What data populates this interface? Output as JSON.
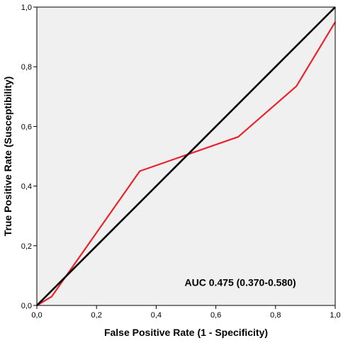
{
  "chart_data": {
    "type": "line",
    "xlabel": "False  Positive Rate (1 - Specificity)",
    "ylabel": "True Positive Rate (Susceptibility)",
    "xlim": [
      0,
      1
    ],
    "ylim": [
      0,
      1
    ],
    "x_ticks": [
      0,
      0.2,
      0.4,
      0.6,
      0.8,
      1.0
    ],
    "y_ticks": [
      0,
      0.2,
      0.4,
      0.6,
      0.8,
      1.0
    ],
    "x_tick_labels": [
      "0,0",
      "0,2",
      "0,4",
      "0,6",
      "0,8",
      "1,0"
    ],
    "y_tick_labels": [
      "0,0",
      "0,2",
      "0,4",
      "0,6",
      "0,8",
      "1,0"
    ],
    "grid": false,
    "background_color": "#f0f0f0",
    "series": [
      {
        "color": "#e8232a",
        "x": [
          0,
          0.05,
          0.345,
          0.675,
          0.87,
          1.0
        ],
        "y": [
          0,
          0.03,
          0.45,
          0.565,
          0.735,
          0.95
        ]
      },
      {
        "color": "#000000",
        "x": [
          0,
          1
        ],
        "y": [
          0,
          1
        ]
      }
    ],
    "annotations": [
      {
        "text": "AUC 0.475 (0.370-0.580)",
        "x": 0.5,
        "y": 0.065
      }
    ]
  }
}
